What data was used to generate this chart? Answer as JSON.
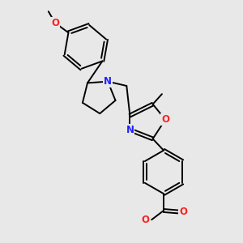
{
  "background_color": "#e8e8e8",
  "bond_color": "#000000",
  "bond_width": 1.4,
  "atom_colors": {
    "N": "#2020ff",
    "O": "#ff2020"
  },
  "font_size": 8.5,
  "figsize": [
    3.0,
    3.0
  ],
  "dpi": 100,
  "xlim": [
    0,
    10
  ],
  "ylim": [
    0,
    10
  ]
}
